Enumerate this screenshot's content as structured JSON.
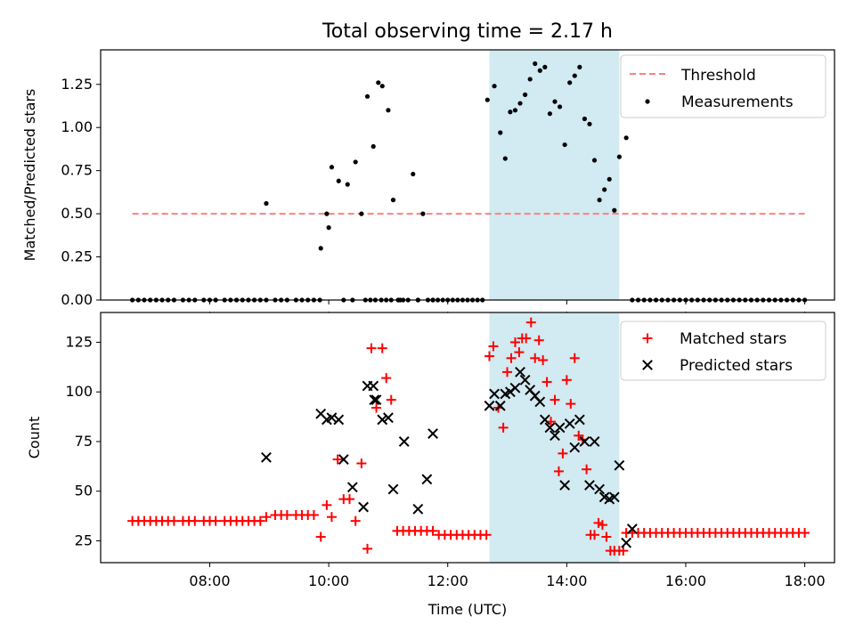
{
  "title": "Total observing time = 2.17 h",
  "colors": {
    "threshold": "#ff7f7f",
    "measurement": "#000000",
    "matched": "#ff0000",
    "predicted": "#000000",
    "span": "#add8e6"
  },
  "chart_data": [
    {
      "type": "scatter",
      "ylabel": "Matched/Predicted stars",
      "xlabel": "",
      "ylim": [
        0,
        1.45
      ],
      "yticks": [
        0.0,
        0.25,
        0.5,
        0.75,
        1.0,
        1.25
      ],
      "ytick_labels": [
        "0.00",
        "0.25",
        "0.50",
        "0.75",
        "1.00",
        "1.25"
      ],
      "highlight_span": [
        "12:42",
        "14:53"
      ],
      "legend_position": "upper right",
      "threshold": {
        "name": "Threshold",
        "y": 0.5,
        "x": [
          "06:42",
          "18:00"
        ]
      },
      "measurements": {
        "name": "Measurements",
        "x": [
          "06:42",
          "06:48",
          "06:54",
          "07:00",
          "07:06",
          "07:12",
          "07:18",
          "07:24",
          "07:33",
          "07:39",
          "07:45",
          "07:54",
          "08:00",
          "08:06",
          "08:15",
          "08:21",
          "08:27",
          "08:33",
          "08:39",
          "08:45",
          "08:51",
          "08:57",
          "09:06",
          "09:12",
          "09:18",
          "09:27",
          "09:33",
          "09:39",
          "09:45",
          "09:51",
          "09:58",
          "10:00",
          "10:03",
          "10:10",
          "10:15",
          "10:19",
          "10:27",
          "10:33",
          "10:39",
          "10:45",
          "10:50",
          "10:54",
          "11:00",
          "11:05",
          "11:10",
          "11:15",
          "11:20",
          "11:25",
          "11:30",
          "11:35",
          "11:40",
          "11:45",
          "11:50",
          "11:55",
          "12:00",
          "12:05",
          "12:10",
          "12:15",
          "12:20",
          "12:25",
          "12:30",
          "12:35",
          "12:40",
          "12:47",
          "12:53",
          "12:58",
          "13:03",
          "13:08",
          "13:13",
          "13:18",
          "13:23",
          "13:28",
          "13:33",
          "13:38",
          "13:43",
          "13:48",
          "13:53",
          "13:58",
          "14:03",
          "14:08",
          "14:13",
          "14:18",
          "14:23",
          "14:28",
          "14:33",
          "14:38",
          "14:43",
          "14:48",
          "14:53",
          "15:00",
          "15:06",
          "15:12",
          "15:18",
          "15:24",
          "15:30",
          "15:36",
          "15:42",
          "15:48",
          "15:54",
          "16:00",
          "16:06",
          "16:12",
          "16:18",
          "16:24",
          "16:30",
          "16:36",
          "16:42",
          "16:48",
          "16:54",
          "17:00",
          "17:06",
          "17:12",
          "17:18",
          "17:24",
          "17:30",
          "17:36",
          "17:42",
          "17:48",
          "17:54",
          "18:00",
          "08:57",
          "09:52",
          "10:24",
          "10:37",
          "10:42",
          "10:47",
          "10:53",
          "10:58",
          "11:03",
          "11:12",
          "11:30",
          "11:45"
        ],
        "y": [
          0,
          0,
          0,
          0,
          0,
          0,
          0,
          0,
          0,
          0,
          0,
          0,
          0,
          0,
          0,
          0,
          0,
          0,
          0,
          0,
          0,
          0,
          0,
          0,
          0,
          0,
          0,
          0,
          0,
          0,
          0.5,
          0.42,
          0.77,
          0.69,
          0,
          0.67,
          0.8,
          0.5,
          1.18,
          0.89,
          1.26,
          1.24,
          1.1,
          0.58,
          0,
          0,
          0,
          0.73,
          0,
          0.5,
          0,
          0,
          0,
          0,
          0,
          0,
          0,
          0,
          0,
          0,
          0,
          0,
          1.16,
          1.24,
          0.97,
          0.82,
          1.09,
          1.1,
          1.14,
          1.19,
          1.28,
          1.37,
          1.33,
          1.35,
          1.08,
          1.15,
          1.12,
          0.9,
          1.26,
          1.3,
          1.35,
          1.05,
          1.02,
          0.81,
          0.58,
          0.64,
          0.7,
          0.52,
          0.83,
          0.94,
          0,
          0,
          0,
          0,
          0,
          0,
          0,
          0,
          0,
          0,
          0,
          0,
          0,
          0,
          0,
          0,
          0,
          0,
          0,
          0,
          0,
          0,
          0,
          0,
          0,
          0,
          0,
          0,
          0,
          0,
          0.56,
          0.3,
          0,
          0,
          0,
          0,
          0,
          0,
          0,
          0,
          0,
          0
        ]
      }
    },
    {
      "type": "scatter",
      "ylabel": "Count",
      "xlabel": "Time (UTC)",
      "ylim": [
        14,
        140
      ],
      "yticks": [
        25,
        50,
        75,
        100,
        125
      ],
      "ytick_labels": [
        "25",
        "50",
        "75",
        "100",
        "125"
      ],
      "xticks": [
        "08:00",
        "10:00",
        "12:00",
        "14:00",
        "16:00",
        "18:00"
      ],
      "xlim": [
        "06:10",
        "18:30"
      ],
      "highlight_span": [
        "12:42",
        "14:53"
      ],
      "legend_position": "upper right",
      "matched": {
        "name": "Matched stars",
        "x": [
          "06:42",
          "06:48",
          "06:54",
          "07:00",
          "07:06",
          "07:12",
          "07:18",
          "07:24",
          "07:33",
          "07:39",
          "07:45",
          "07:54",
          "08:00",
          "08:06",
          "08:15",
          "08:21",
          "08:27",
          "08:33",
          "08:39",
          "08:45",
          "08:51",
          "08:57",
          "09:06",
          "09:12",
          "09:18",
          "09:27",
          "09:33",
          "09:39",
          "09:45",
          "09:52",
          "09:58",
          "10:03",
          "10:09",
          "10:15",
          "10:21",
          "10:27",
          "10:33",
          "10:39",
          "10:43",
          "10:48",
          "10:54",
          "10:58",
          "11:03",
          "11:09",
          "11:15",
          "11:21",
          "11:27",
          "11:33",
          "11:39",
          "11:45",
          "11:51",
          "11:57",
          "12:03",
          "12:09",
          "12:15",
          "12:21",
          "12:27",
          "12:33",
          "12:39",
          "12:42",
          "12:46",
          "12:51",
          "12:56",
          "13:00",
          "13:04",
          "13:08",
          "13:12",
          "13:15",
          "13:19",
          "13:24",
          "13:28",
          "13:32",
          "13:36",
          "13:40",
          "13:44",
          "13:48",
          "13:52",
          "13:56",
          "14:00",
          "14:04",
          "14:08",
          "14:12",
          "14:16",
          "14:20",
          "14:24",
          "14:28",
          "14:32",
          "14:36",
          "14:40",
          "14:44",
          "14:48",
          "14:53",
          "14:57",
          "15:00",
          "15:06",
          "15:12",
          "15:18",
          "15:24",
          "15:30",
          "15:36",
          "15:42",
          "15:48",
          "15:54",
          "16:00",
          "16:06",
          "16:12",
          "16:18",
          "16:24",
          "16:30",
          "16:36",
          "16:42",
          "16:48",
          "16:54",
          "17:00",
          "17:06",
          "17:12",
          "17:18",
          "17:24",
          "17:30",
          "17:36",
          "17:42",
          "17:48",
          "17:54",
          "18:00"
        ],
        "y": [
          35,
          35,
          35,
          35,
          35,
          35,
          35,
          35,
          35,
          35,
          35,
          35,
          35,
          35,
          35,
          35,
          35,
          35,
          35,
          35,
          35,
          37,
          38,
          38,
          38,
          38,
          38,
          38,
          38,
          27,
          43,
          37,
          66,
          46,
          46,
          35,
          64,
          21,
          122,
          92,
          122,
          107,
          96,
          30,
          30,
          30,
          30,
          30,
          30,
          30,
          28,
          28,
          28,
          28,
          28,
          28,
          28,
          28,
          28,
          118,
          123,
          92,
          82,
          110,
          117,
          125,
          120,
          127,
          127,
          135,
          117,
          126,
          116,
          105,
          85,
          96,
          60,
          69,
          106,
          94,
          117,
          78,
          76,
          61,
          28,
          28,
          34,
          33,
          27,
          20,
          20,
          20,
          20,
          29,
          29,
          29,
          29,
          29,
          29,
          29,
          29,
          29,
          29,
          29,
          29,
          29,
          29,
          29,
          29,
          29,
          29,
          29,
          29,
          29,
          29,
          29,
          29,
          29,
          29,
          29,
          29,
          29,
          29,
          29
        ]
      },
      "predicted": {
        "name": "Predicted stars",
        "x": [
          "08:57",
          "09:52",
          "09:58",
          "10:03",
          "10:10",
          "10:15",
          "10:39",
          "10:45",
          "10:46",
          "10:54",
          "11:00",
          "11:05",
          "11:30",
          "11:39",
          "11:45",
          "12:42",
          "12:47",
          "12:53",
          "12:58",
          "13:03",
          "13:08",
          "13:13",
          "13:18",
          "13:23",
          "13:28",
          "13:33",
          "13:38",
          "13:43",
          "13:48",
          "13:53",
          "13:58",
          "14:03",
          "14:08",
          "14:13",
          "14:18",
          "14:23",
          "14:28",
          "14:33",
          "14:38",
          "14:43",
          "14:48",
          "14:53",
          "15:00",
          "15:06",
          "10:35",
          "10:24",
          "10:48",
          "11:16"
        ],
        "y": [
          67,
          89,
          86,
          87,
          86,
          66,
          103,
          103,
          96,
          86,
          87,
          51,
          41,
          56,
          79,
          93,
          99,
          93,
          99,
          100,
          102,
          110,
          106,
          101,
          98,
          95,
          86,
          82,
          78,
          82,
          53,
          84,
          72,
          86,
          75,
          53,
          75,
          51,
          47,
          46,
          47,
          63,
          24,
          31,
          42,
          52,
          96,
          75
        ]
      }
    }
  ]
}
